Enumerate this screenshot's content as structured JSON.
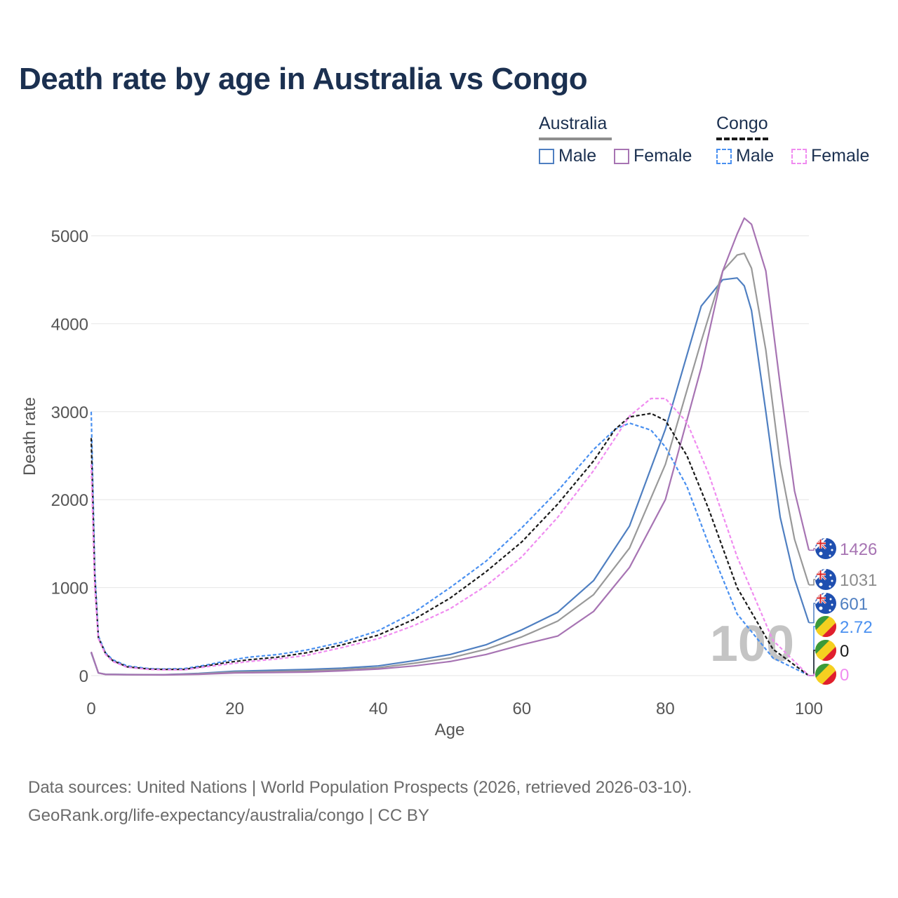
{
  "title": "Death rate by age in Australia vs Congo",
  "legend": {
    "groups": [
      {
        "title": "Australia",
        "style": "solid",
        "items": [
          {
            "label": "Male",
            "color": "#4f7fc1"
          },
          {
            "label": "Female",
            "color": "#a774b3"
          }
        ]
      },
      {
        "title": "Congo",
        "style": "dashed",
        "items": [
          {
            "label": "Male",
            "color": "#4a90f0"
          },
          {
            "label": "Female",
            "color": "#f08cf0"
          }
        ]
      }
    ]
  },
  "source": {
    "line1": "Data sources: United Nations | World Population Prospects (2026, retrieved 2026-03-10).",
    "line2": "GeoRank.org/life-expectancy/australia/congo | CC BY"
  },
  "chart_data": {
    "type": "line",
    "title": "Death rate by age in Australia vs Congo",
    "xlabel": "Age",
    "ylabel": "Death rate",
    "xlim": [
      0,
      100
    ],
    "ylim": [
      0,
      5200
    ],
    "xticks": [
      0,
      20,
      40,
      60,
      80,
      100
    ],
    "yticks": [
      0,
      1000,
      2000,
      3000,
      4000,
      5000
    ],
    "grid": true,
    "current_age_label": "100",
    "series": [
      {
        "name": "Australia Male",
        "country": "Australia",
        "sex": "Male",
        "color": "#4f7fc1",
        "dash": false,
        "x": [
          0,
          1,
          2,
          5,
          10,
          15,
          20,
          25,
          30,
          35,
          40,
          45,
          50,
          55,
          60,
          65,
          70,
          75,
          80,
          85,
          88,
          90,
          91,
          92,
          94,
          96,
          98,
          100
        ],
        "y": [
          260,
          30,
          15,
          12,
          10,
          25,
          50,
          60,
          70,
          85,
          110,
          170,
          240,
          350,
          520,
          720,
          1080,
          1700,
          2800,
          4200,
          4500,
          4520,
          4430,
          4150,
          3000,
          1800,
          1100,
          601
        ]
      },
      {
        "name": "Australia Both",
        "country": "Australia",
        "sex": "Both",
        "color": "#999999",
        "dash": false,
        "x": [
          0,
          1,
          2,
          5,
          10,
          15,
          20,
          25,
          30,
          35,
          40,
          45,
          50,
          55,
          60,
          65,
          70,
          75,
          80,
          85,
          88,
          90,
          91,
          92,
          94,
          96,
          98,
          100
        ],
        "y": [
          265,
          30,
          14,
          11,
          9,
          20,
          40,
          45,
          55,
          70,
          90,
          140,
          200,
          300,
          440,
          620,
          920,
          1450,
          2400,
          3800,
          4600,
          4780,
          4800,
          4630,
          3700,
          2400,
          1550,
          1031
        ]
      },
      {
        "name": "Australia Female",
        "country": "Australia",
        "sex": "Female",
        "color": "#a774b3",
        "dash": false,
        "x": [
          0,
          1,
          2,
          5,
          10,
          15,
          20,
          25,
          30,
          35,
          40,
          45,
          50,
          55,
          60,
          65,
          70,
          75,
          80,
          85,
          88,
          90,
          91,
          92,
          94,
          96,
          98,
          100
        ],
        "y": [
          270,
          30,
          13,
          10,
          8,
          15,
          30,
          35,
          40,
          55,
          75,
          110,
          160,
          240,
          350,
          450,
          730,
          1230,
          2000,
          3500,
          4600,
          5020,
          5200,
          5130,
          4600,
          3300,
          2100,
          1426
        ]
      },
      {
        "name": "Congo Male",
        "country": "Congo",
        "sex": "Male",
        "color": "#4a90f0",
        "dash": true,
        "x": [
          0,
          0.5,
          1,
          2,
          3,
          5,
          8,
          10,
          13,
          16,
          19,
          22,
          26,
          30,
          35,
          40,
          45,
          50,
          55,
          60,
          65,
          70,
          73,
          75,
          78,
          80,
          83,
          86,
          90,
          95,
          100
        ],
        "y": [
          3000,
          1200,
          450,
          260,
          180,
          110,
          80,
          75,
          80,
          120,
          170,
          210,
          240,
          290,
          380,
          510,
          720,
          1000,
          1300,
          1680,
          2100,
          2570,
          2800,
          2870,
          2790,
          2600,
          2150,
          1500,
          700,
          200,
          2.72
        ]
      },
      {
        "name": "Congo Both",
        "country": "Congo",
        "sex": "Both",
        "color": "#1a1a1a",
        "dash": true,
        "x": [
          0,
          0.5,
          1,
          2,
          3,
          5,
          8,
          10,
          13,
          16,
          19,
          22,
          26,
          30,
          35,
          40,
          45,
          50,
          55,
          60,
          65,
          70,
          73,
          75,
          78,
          80,
          83,
          86,
          90,
          95,
          100
        ],
        "y": [
          2700,
          1100,
          430,
          250,
          170,
          100,
          75,
          70,
          70,
          110,
          150,
          180,
          210,
          260,
          350,
          460,
          640,
          880,
          1180,
          1520,
          1950,
          2440,
          2800,
          2940,
          2980,
          2900,
          2500,
          1900,
          1000,
          300,
          0
        ]
      },
      {
        "name": "Congo Female",
        "country": "Congo",
        "sex": "Female",
        "color": "#f08cf0",
        "dash": true,
        "x": [
          0,
          0.5,
          1,
          2,
          3,
          5,
          8,
          10,
          13,
          16,
          19,
          22,
          26,
          30,
          35,
          40,
          45,
          50,
          55,
          60,
          65,
          70,
          73,
          75,
          78,
          80,
          83,
          86,
          90,
          95,
          100
        ],
        "y": [
          2400,
          1000,
          420,
          240,
          160,
          95,
          70,
          65,
          65,
          100,
          130,
          160,
          190,
          230,
          320,
          420,
          570,
          760,
          1020,
          1350,
          1800,
          2330,
          2700,
          2950,
          3150,
          3150,
          2880,
          2300,
          1350,
          400,
          0
        ]
      }
    ],
    "end_labels": [
      {
        "value": "1426",
        "color": "#a774b3",
        "flag": "australia"
      },
      {
        "value": "1031",
        "color": "#8c8c8c",
        "flag": "australia"
      },
      {
        "value": "601",
        "color": "#4f7fc1",
        "flag": "australia"
      },
      {
        "value": "2.72",
        "color": "#4a90f0",
        "flag": "congo"
      },
      {
        "value": "0",
        "color": "#1a1a1a",
        "flag": "congo"
      },
      {
        "value": "0",
        "color": "#f08cf0",
        "flag": "congo"
      }
    ]
  }
}
